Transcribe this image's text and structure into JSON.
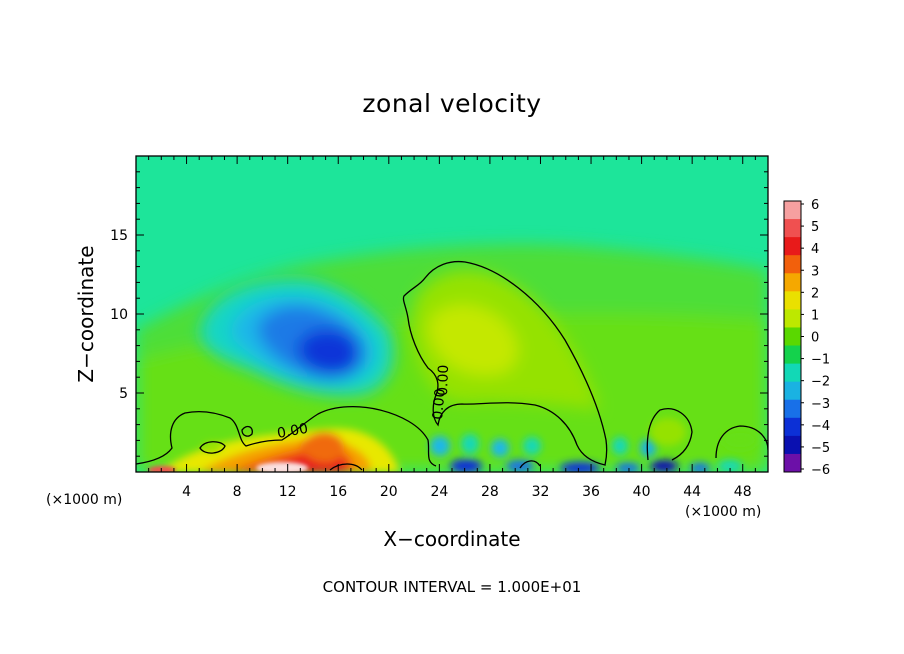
{
  "chart_data": {
    "type": "heatmap",
    "title": "zonal velocity",
    "xlabel": "X−coordinate",
    "ylabel": "Z−coordinate",
    "x_unit": "(×1000 m)",
    "y_unit": "(×1000 m)",
    "xlim": [
      0,
      50
    ],
    "ylim": [
      0,
      20
    ],
    "x_ticks": [
      4,
      8,
      12,
      16,
      20,
      24,
      28,
      32,
      36,
      40,
      44,
      48
    ],
    "y_ticks": [
      5,
      10,
      15
    ],
    "contour_interval_label": "CONTOUR INTERVAL = 1.000E+01",
    "contour_labels": [
      "0.00",
      "0.00",
      "0.00"
    ],
    "colorbar": {
      "ticks": [
        "6",
        "5",
        "4",
        "3",
        "2",
        "1",
        "0",
        "−1",
        "−2",
        "−3",
        "−4",
        "−5",
        "−6"
      ],
      "values": [
        6,
        5,
        4,
        3,
        2,
        1,
        0,
        -1,
        -2,
        -3,
        -4,
        -5,
        -6
      ],
      "colors": [
        "#f6a0a0",
        "#f05050",
        "#e81a1a",
        "#f2600c",
        "#f5a800",
        "#eae000",
        "#bde800",
        "#5ad800",
        "#14d24c",
        "#12d8b6",
        "#1ab2e2",
        "#1870e8",
        "#0c30d6",
        "#0a10b0",
        "#6c10a8"
      ]
    },
    "background_field": "#1de59a",
    "features": [
      {
        "name": "upper-negative-region",
        "x_center": 15,
        "z_center": 9,
        "min_value": -4.5
      },
      {
        "name": "positive-plume",
        "x_center": 28,
        "z_center": 8.5,
        "max_value": 1.5
      },
      {
        "name": "near-surface-positive",
        "x_center": 13,
        "z_center": 1,
        "max_value": 6
      },
      {
        "name": "near-surface-negative-waves",
        "x_center": 36,
        "z_center": 0.3,
        "min_value": -5
      }
    ]
  }
}
